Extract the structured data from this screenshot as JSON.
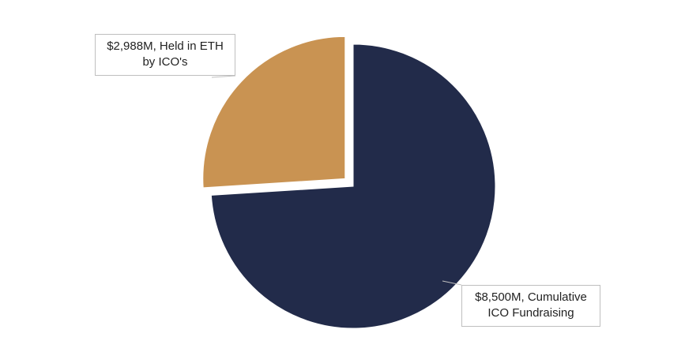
{
  "chart_data": {
    "type": "pie",
    "title": "",
    "slices": [
      {
        "label_line1": "$2,988M, Held in ETH",
        "label_line2": "by ICO's",
        "value": 2988,
        "color": "#C99352",
        "exploded": true
      },
      {
        "label_line1": "$8,500M, Cumulative",
        "label_line2": "ICO Fundraising",
        "value": 8500,
        "color": "#222B4A",
        "exploded": false
      }
    ],
    "legend": "none",
    "start_angle": "12 o'clock, clockwise order: navy then tan"
  }
}
